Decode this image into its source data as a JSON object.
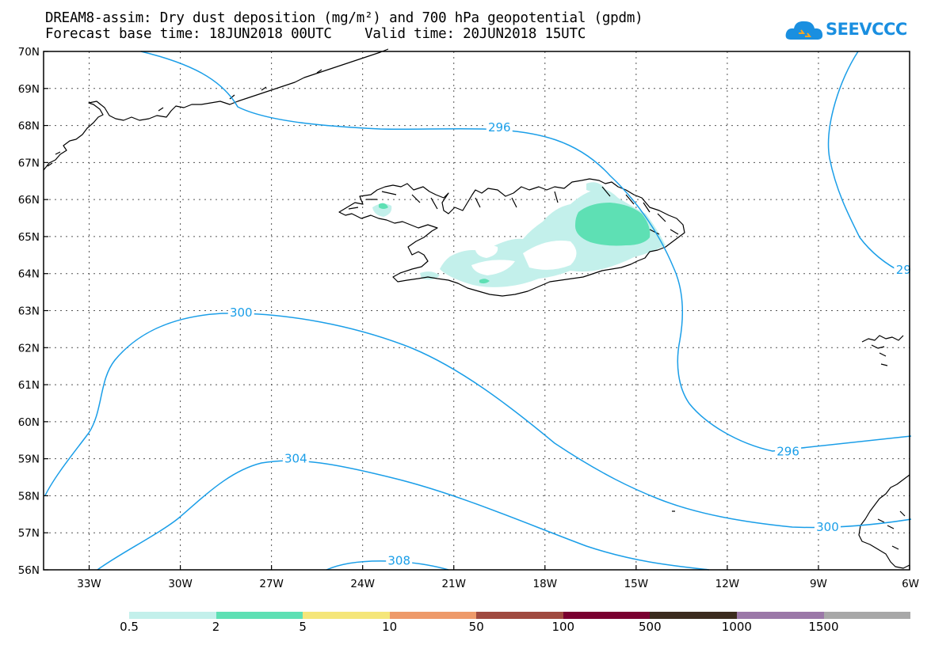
{
  "header": {
    "title_line1": "DREAM8-assim: Dry dust deposition (mg/m²) and 700 hPa geopotential (gpdm)",
    "title_line2": "Forecast base time: 18JUN2018 00UTC    Valid time: 20JUN2018 15UTC"
  },
  "logo": {
    "text": "SEEVCCC",
    "icon": "cloud-icon"
  },
  "map": {
    "lon_range": [
      -34.5,
      -6
    ],
    "lat_range": [
      56,
      70
    ],
    "lat_labels": [
      "70N",
      "69N",
      "68N",
      "67N",
      "66N",
      "65N",
      "64N",
      "63N",
      "62N",
      "61N",
      "60N",
      "59N",
      "58N",
      "57N",
      "56N"
    ],
    "lon_labels": [
      "33W",
      "30W",
      "27W",
      "24W",
      "21W",
      "18W",
      "15W",
      "12W",
      "9W",
      "6W"
    ],
    "grid": true,
    "contour_color": "#1a9ee8",
    "contour_labels": [
      {
        "value": "296",
        "lon": -19.5,
        "lat": 67.95
      },
      {
        "value": "29",
        "lon": -6.2,
        "lat": 64.1
      },
      {
        "value": "300",
        "lon": -28.0,
        "lat": 62.95
      },
      {
        "value": "296",
        "lon": -10.0,
        "lat": 59.2
      },
      {
        "value": "304",
        "lon": -26.2,
        "lat": 59.0
      },
      {
        "value": "300",
        "lon": -8.7,
        "lat": 57.15
      },
      {
        "value": "308",
        "lon": -22.8,
        "lat": 56.25
      }
    ]
  },
  "colorbar": {
    "labels": [
      "0.5",
      "2",
      "5",
      "10",
      "50",
      "100",
      "500",
      "1000",
      "1500"
    ],
    "colors": [
      "#c3f0eb",
      "#5ee0b4",
      "#f5e67a",
      "#ee9a6a",
      "#a04a40",
      "#7a0030",
      "#3b2b1e",
      "#9b78a8",
      "#a8a8a8"
    ]
  }
}
